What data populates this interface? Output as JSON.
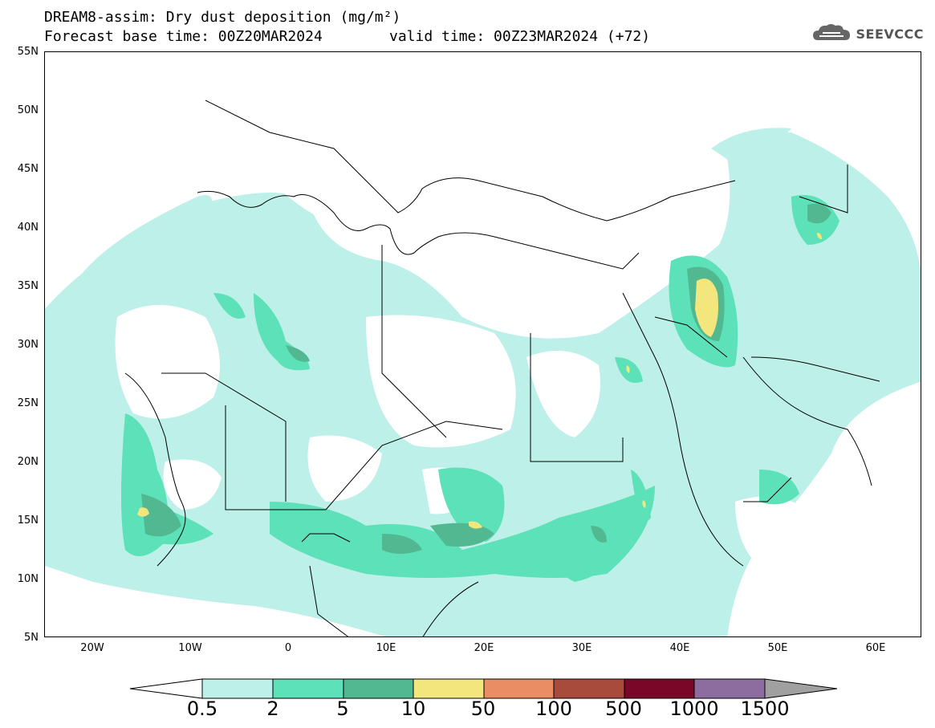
{
  "title_line1": "DREAM8-assim: Dry dust deposition (mg/m²)",
  "title_line2_base": "Forecast base time: 00Z20MAR2024",
  "title_line2_valid": "valid time: 00Z23MAR2024 (+72)",
  "logo_text": "SEEVCCC",
  "logo_icon": "cloud-logo-icon",
  "lat_labels": [
    "55N",
    "50N",
    "45N",
    "40N",
    "35N",
    "30N",
    "25N",
    "20N",
    "15N",
    "10N",
    "5N"
  ],
  "lon_labels": [
    "20W",
    "10W",
    "0",
    "10E",
    "20E",
    "30E",
    "40E",
    "50E",
    "60E"
  ],
  "colorbar": {
    "labels": [
      "0.5",
      "2",
      "5",
      "10",
      "50",
      "100",
      "500",
      "1000",
      "1500"
    ],
    "colors": [
      "#bdf0e8",
      "#5ce1b8",
      "#52b892",
      "#f2e67c",
      "#ea8c64",
      "#a84a3c",
      "#7a0628",
      "#8d6ca0"
    ],
    "under_color": "#ffffff",
    "over_color": "#a0a0a0"
  }
}
